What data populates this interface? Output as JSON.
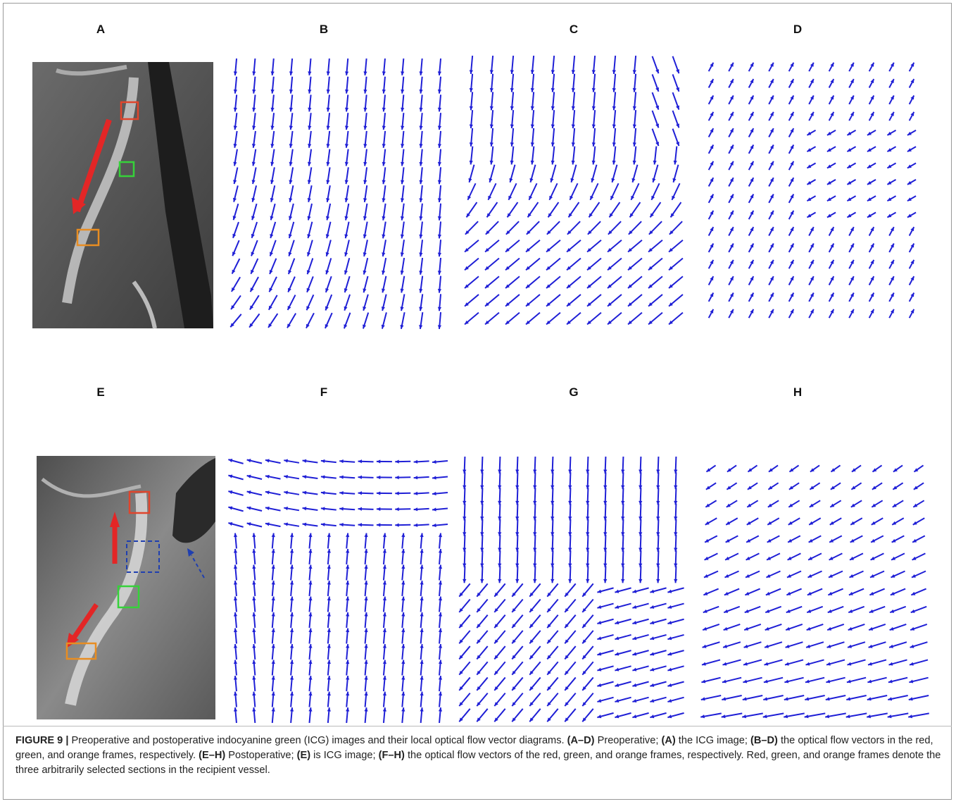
{
  "panel_labels": [
    "A",
    "B",
    "C",
    "D",
    "E",
    "F",
    "G",
    "H"
  ],
  "caption": {
    "parts": [
      {
        "text": "FIGURE 9 |",
        "bold": true
      },
      {
        "text": " Preoperative and postoperative indocyanine green (ICG) images and their local optical flow vector diagrams. ",
        "bold": false
      },
      {
        "text": "(A–D)",
        "bold": true
      },
      {
        "text": " Preoperative; ",
        "bold": false
      },
      {
        "text": "(A)",
        "bold": true
      },
      {
        "text": " the ICG image; ",
        "bold": false
      },
      {
        "text": "(B–D)",
        "bold": true
      },
      {
        "text": " the optical flow vectors in the red, green, and orange frames, respectively. ",
        "bold": false
      },
      {
        "text": "(E–H)",
        "bold": true
      },
      {
        "text": " Postoperative; ",
        "bold": false
      },
      {
        "text": "(E)",
        "bold": true
      },
      {
        "text": " is ICG image; ",
        "bold": false
      },
      {
        "text": "(F–H)",
        "bold": true
      },
      {
        "text": " the optical flow vectors of the red, green, and orange frames, respectively. Red, green, and orange frames denote the three arbitrarily selected sections in the recipient vessel.",
        "bold": false
      }
    ]
  }
}
